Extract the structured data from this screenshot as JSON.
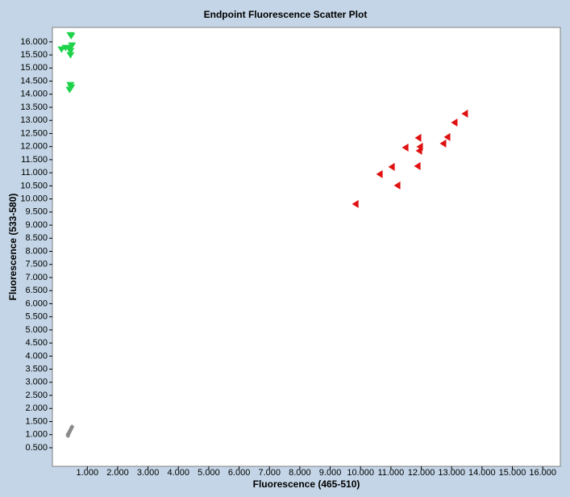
{
  "chart_data": {
    "type": "scatter",
    "title": "Endpoint Fluorescence Scatter Plot",
    "x_label": "Fluorescence (465-510)",
    "y_label": "Fluorescence (533-580)",
    "xlim": [
      -150,
      16580
    ],
    "ylim": [
      -210,
      16550
    ],
    "xticks": [
      {
        "value": 1000,
        "label": "1.000"
      },
      {
        "value": 2000,
        "label": "2.000"
      },
      {
        "value": 3000,
        "label": "3.000"
      },
      {
        "value": 4000,
        "label": "4.000"
      },
      {
        "value": 5000,
        "label": "5.000"
      },
      {
        "value": 6000,
        "label": "6.000"
      },
      {
        "value": 7000,
        "label": "7.000"
      },
      {
        "value": 8000,
        "label": "8.000"
      },
      {
        "value": 9000,
        "label": "9.000"
      },
      {
        "value": 10000,
        "label": "10.000"
      },
      {
        "value": 11000,
        "label": "11.000"
      },
      {
        "value": 12000,
        "label": "12.000"
      },
      {
        "value": 13000,
        "label": "13.000"
      },
      {
        "value": 14000,
        "label": "14.000"
      },
      {
        "value": 15000,
        "label": "15.000"
      },
      {
        "value": 16000,
        "label": "16.000"
      }
    ],
    "yticks": [
      {
        "value": 500,
        "label": "0.500"
      },
      {
        "value": 1000,
        "label": "1.000"
      },
      {
        "value": 1500,
        "label": "1.500"
      },
      {
        "value": 2000,
        "label": "2.000"
      },
      {
        "value": 2500,
        "label": "2.500"
      },
      {
        "value": 3000,
        "label": "3.000"
      },
      {
        "value": 3500,
        "label": "3.500"
      },
      {
        "value": 4000,
        "label": "4.000"
      },
      {
        "value": 4500,
        "label": "4.500"
      },
      {
        "value": 5000,
        "label": "5.000"
      },
      {
        "value": 5500,
        "label": "5.500"
      },
      {
        "value": 6000,
        "label": "6.000"
      },
      {
        "value": 6500,
        "label": "6.500"
      },
      {
        "value": 7000,
        "label": "7.000"
      },
      {
        "value": 7500,
        "label": "7.500"
      },
      {
        "value": 8000,
        "label": "8.000"
      },
      {
        "value": 8500,
        "label": "8.500"
      },
      {
        "value": 9000,
        "label": "9.000"
      },
      {
        "value": 9500,
        "label": "9.500"
      },
      {
        "value": 10000,
        "label": "10.000"
      },
      {
        "value": 10500,
        "label": "10.500"
      },
      {
        "value": 11000,
        "label": "11.000"
      },
      {
        "value": 11500,
        "label": "11.500"
      },
      {
        "value": 12000,
        "label": "12.000"
      },
      {
        "value": 12500,
        "label": "12.500"
      },
      {
        "value": 13000,
        "label": "13.000"
      },
      {
        "value": 13500,
        "label": "13.500"
      },
      {
        "value": 14000,
        "label": "14.000"
      },
      {
        "value": 14500,
        "label": "14.500"
      },
      {
        "value": 15000,
        "label": "15.000"
      },
      {
        "value": 15500,
        "label": "15.500"
      },
      {
        "value": 16000,
        "label": "16.000"
      }
    ],
    "grid": false,
    "series": [
      {
        "color": "#1ed24a",
        "marker": "triangle-down",
        "x": [
          445,
          470,
          151,
          283,
          417,
          495,
          445,
          445,
          445,
          470,
          417
        ],
        "values": [
          16247,
          16216,
          15700,
          15760,
          15760,
          15853,
          15638,
          15484,
          14343,
          14251,
          14159
        ]
      },
      {
        "color": "#e01010",
        "marker": "triangle-left",
        "x": [
          9826,
          10621,
          11019,
          11204,
          11470,
          11894,
          11947,
          11920,
          11867,
          12715,
          12848,
          13086,
          13430
        ],
        "values": [
          9806,
          10946,
          11223,
          10514,
          11963,
          12333,
          11994,
          11840,
          11254,
          12117,
          12363,
          12918,
          13257
        ]
      },
      {
        "color": "#8a8a8a",
        "marker": "diamond",
        "x": [
          364,
          390,
          417,
          443,
          470,
          496,
          364
        ],
        "values": [
          961,
          1054,
          1115,
          1177,
          1239,
          1300,
          1023
        ]
      }
    ]
  }
}
